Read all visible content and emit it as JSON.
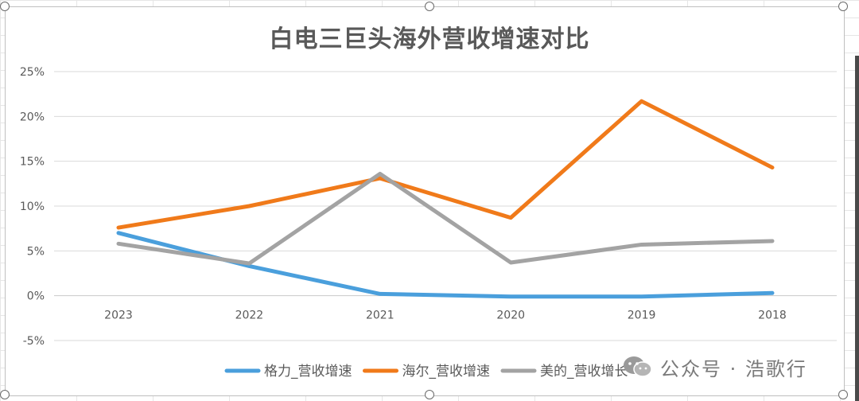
{
  "chart_data": {
    "type": "line",
    "title": "白电三巨头海外营收增速对比",
    "categories": [
      "2023",
      "2022",
      "2021",
      "2020",
      "2019",
      "2018"
    ],
    "y_ticks": [
      "25%",
      "20%",
      "15%",
      "10%",
      "5%",
      "0%",
      "-5%"
    ],
    "ylim": [
      -5,
      25
    ],
    "y_unit": "%",
    "grid": true,
    "legend_position": "bottom",
    "series": [
      {
        "name": "格力_营收增速",
        "color": "#4a9fdc",
        "values": [
          7.0,
          3.3,
          0.2,
          -0.1,
          -0.1,
          0.3
        ]
      },
      {
        "name": "海尔_营收增速",
        "color": "#f07a1a",
        "values": [
          7.6,
          10.0,
          13.1,
          8.7,
          21.7,
          14.3
        ]
      },
      {
        "name": "美的_营收增长",
        "color": "#a3a3a3",
        "values": [
          5.8,
          3.6,
          13.6,
          3.7,
          5.7,
          6.1
        ]
      }
    ]
  },
  "watermark": {
    "icon": "wechat-icon",
    "text": "公众号 · 浩歌行"
  }
}
